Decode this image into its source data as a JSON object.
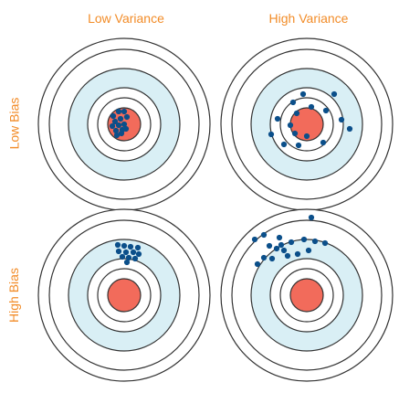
{
  "headers": {
    "low_variance": "Low Variance",
    "high_variance": "High Variance"
  },
  "rows": {
    "low_bias": "Low Bias",
    "high_bias": "High Bias"
  },
  "colors": {
    "label": "#f28c28",
    "bullseye": "#f26b5b",
    "ring_fill": "#d9eff5",
    "point": "#0b4f8a",
    "line": "#333333",
    "background": "#ffffff"
  },
  "targets": [
    {
      "id": "low-bias-low-variance",
      "row": "low_bias",
      "column": "low_variance"
    },
    {
      "id": "low-bias-high-variance",
      "row": "low_bias",
      "column": "high_variance"
    },
    {
      "id": "high-bias-low-variance",
      "row": "high_bias",
      "column": "low_variance"
    },
    {
      "id": "high-bias-high-variance",
      "row": "high_bias",
      "column": "high_variance"
    }
  ]
}
